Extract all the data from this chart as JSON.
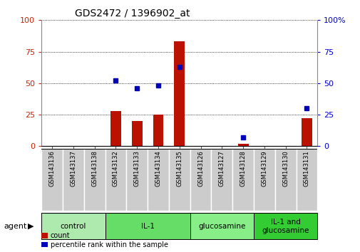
{
  "title": "GDS2472 / 1396902_at",
  "samples": [
    "GSM143136",
    "GSM143137",
    "GSM143138",
    "GSM143132",
    "GSM143133",
    "GSM143134",
    "GSM143135",
    "GSM143126",
    "GSM143127",
    "GSM143128",
    "GSM143129",
    "GSM143130",
    "GSM143131"
  ],
  "count_values": [
    0,
    0,
    0,
    28,
    20,
    25,
    83,
    0,
    0,
    2,
    0,
    0,
    22
  ],
  "percentile_values": [
    null,
    null,
    null,
    52,
    46,
    48,
    63,
    null,
    null,
    7,
    null,
    null,
    30
  ],
  "groups": [
    {
      "label": "control",
      "indices": [
        0,
        1,
        2
      ],
      "color": "#aeeaae"
    },
    {
      "label": "IL-1",
      "indices": [
        3,
        4,
        5,
        6
      ],
      "color": "#66dd66"
    },
    {
      "label": "glucosamine",
      "indices": [
        7,
        8,
        9
      ],
      "color": "#88ee88"
    },
    {
      "label": "IL-1 and\nglucosamine",
      "indices": [
        10,
        11,
        12
      ],
      "color": "#33cc33"
    }
  ],
  "ylim_left": [
    0,
    100
  ],
  "ylim_right": [
    0,
    100
  ],
  "yticks": [
    0,
    25,
    50,
    75,
    100
  ],
  "bar_color": "#bb1100",
  "dot_color": "#0000bb",
  "bar_width": 0.5,
  "tick_label_color_left": "#cc2200",
  "tick_label_color_right": "#0000cc",
  "sample_box_color": "#cccccc",
  "legend_red_label": "count",
  "legend_blue_label": "percentile rank within the sample",
  "agent_label": "agent"
}
